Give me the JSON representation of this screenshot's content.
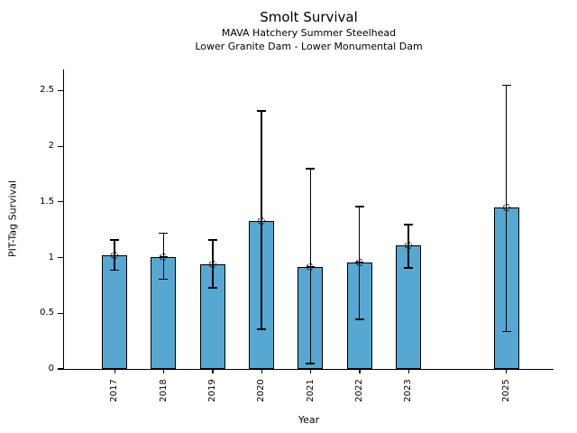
{
  "chart_data": {
    "type": "bar",
    "title": "Smolt Survival",
    "subtitle": [
      "MAVA Hatchery Summer Steelhead",
      "Lower Granite Dam - Lower Monumental Dam"
    ],
    "xlabel": "Year",
    "ylabel": "PIT-Tag Survival",
    "categories": [
      "2017",
      "2018",
      "2019",
      "2020",
      "2021",
      "2022",
      "2023",
      "2025"
    ],
    "category_positions": [
      0,
      1,
      2,
      3,
      4,
      5,
      6,
      8
    ],
    "values": [
      1.02,
      1.01,
      0.94,
      1.33,
      0.92,
      0.96,
      1.11,
      1.45
    ],
    "error_low": [
      0.89,
      0.81,
      0.73,
      0.36,
      0.05,
      0.45,
      0.91,
      0.34
    ],
    "error_high": [
      1.16,
      1.22,
      1.16,
      2.32,
      1.8,
      1.46,
      1.3,
      2.55
    ],
    "ytick_values": [
      0,
      0.5,
      1,
      1.5,
      2,
      2.5
    ],
    "ytick_labels": [
      "0",
      "0.5",
      "1",
      "1.5",
      "2",
      "2.5"
    ],
    "ylim": [
      0,
      2.69
    ],
    "xlim": [
      -1.04,
      8.96
    ],
    "grid": false,
    "legend_position": "none",
    "bar_color": "#56A8D2",
    "bar_edge_color": "#000000",
    "error_color": "#000000",
    "marker": "circle-plus-icon"
  }
}
